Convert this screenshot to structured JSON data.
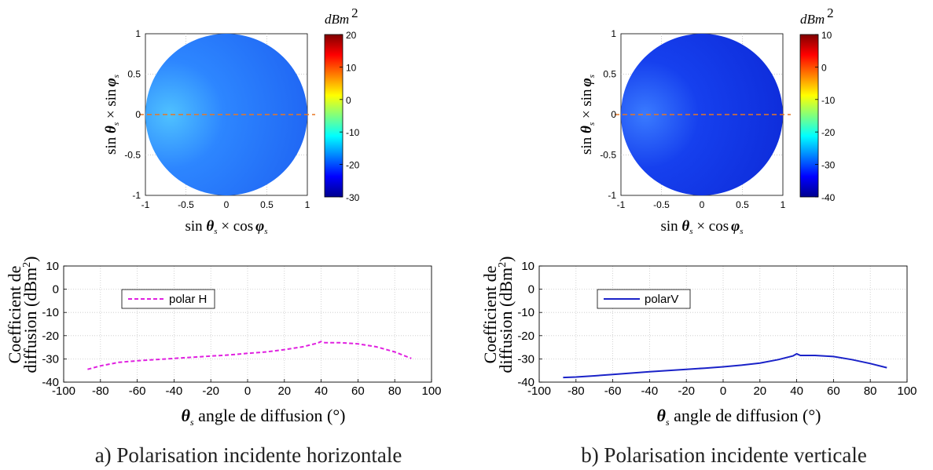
{
  "panels": [
    {
      "caption": "a) Polarisation incidente horizontale",
      "map": {
        "colorbar_unit": "dBm",
        "colorbar_unit_exp": "2",
        "colorbar_ticks": [
          "20",
          "10",
          "0",
          "-10",
          "-20",
          "-30"
        ],
        "axis_ticks": [
          "-1",
          "-0.5",
          "0",
          "0.5",
          "1"
        ],
        "xlabel_parts": [
          "sin",
          "θ",
          "s",
          " × cos",
          "φ",
          "s"
        ],
        "ylabel_parts": [
          "sin",
          "θ",
          "s",
          " × sin",
          "φ",
          "s"
        ]
      },
      "chart_data": {
        "type": "line",
        "ylabel_line1": "Coefficient de",
        "ylabel_line2": "diffusion (dBm",
        "ylabel_exp": "2",
        "ylabel_close": ")",
        "xlabel": "angle de diffusion (°)",
        "xlabel_symbol": "θ",
        "xlabel_sub": "s",
        "xlim": [
          -100,
          100
        ],
        "ylim": [
          -40,
          10
        ],
        "xticks": [
          -100,
          -80,
          -60,
          -40,
          -20,
          0,
          20,
          40,
          60,
          80,
          100
        ],
        "yticks": [
          10,
          0,
          -10,
          -20,
          -30,
          -40
        ],
        "grid": true,
        "legend_position": "top-left",
        "series": [
          {
            "name": "polar H",
            "color": "#e020e0",
            "style": "dashed",
            "x": [
              -87,
              -80,
              -70,
              -60,
              -50,
              -40,
              -30,
              -20,
              -10,
              0,
              10,
              20,
              30,
              38,
              40,
              41,
              42,
              50,
              60,
              70,
              80,
              89
            ],
            "y": [
              -34.5,
              -33,
              -31.5,
              -30.8,
              -30.3,
              -29.8,
              -29.3,
              -28.8,
              -28.3,
              -27.6,
              -27,
              -26,
              -24.8,
              -23.2,
              -22.5,
              -22.8,
              -23,
              -23,
              -23.5,
              -24.8,
              -27,
              -29.8
            ]
          }
        ]
      }
    },
    {
      "caption": "b) Polarisation incidente verticale",
      "map": {
        "colorbar_unit": "dBm",
        "colorbar_unit_exp": "2",
        "colorbar_ticks": [
          "10",
          "0",
          "-10",
          "-20",
          "-30",
          "-40"
        ],
        "axis_ticks": [
          "-1",
          "-0.5",
          "0",
          "0.5",
          "1"
        ],
        "xlabel_parts": [
          "sin",
          "θ",
          "s",
          " × cos",
          "φ",
          "s"
        ],
        "ylabel_parts": [
          "sin",
          "θ",
          "s",
          " × sin",
          "φ",
          "s"
        ]
      },
      "chart_data": {
        "type": "line",
        "ylabel_line1": "Coefficient de",
        "ylabel_line2": "diffusion (dBm",
        "ylabel_exp": "2",
        "ylabel_close": ")",
        "xlabel": "angle de diffusion (°)",
        "xlabel_symbol": "θ",
        "xlabel_sub": "s",
        "xlim": [
          -100,
          100
        ],
        "ylim": [
          -40,
          10
        ],
        "xticks": [
          -100,
          -80,
          -60,
          -40,
          -20,
          0,
          20,
          40,
          60,
          80,
          100
        ],
        "yticks": [
          10,
          0,
          -10,
          -20,
          -30,
          -40
        ],
        "grid": true,
        "legend_position": "top-left",
        "series": [
          {
            "name": "polarV",
            "color": "#1a22c8",
            "style": "solid",
            "x": [
              -87,
              -80,
              -70,
              -60,
              -50,
              -40,
              -30,
              -20,
              -10,
              0,
              10,
              20,
              30,
              38,
              40,
              42,
              50,
              60,
              70,
              80,
              89
            ],
            "y": [
              -38,
              -37.8,
              -37.3,
              -36.7,
              -36.1,
              -35.5,
              -35,
              -34.5,
              -34,
              -33.4,
              -32.7,
              -31.8,
              -30.3,
              -28.7,
              -27.8,
              -28.5,
              -28.5,
              -29,
              -30.3,
              -32,
              -33.8
            ]
          }
        ]
      }
    }
  ]
}
